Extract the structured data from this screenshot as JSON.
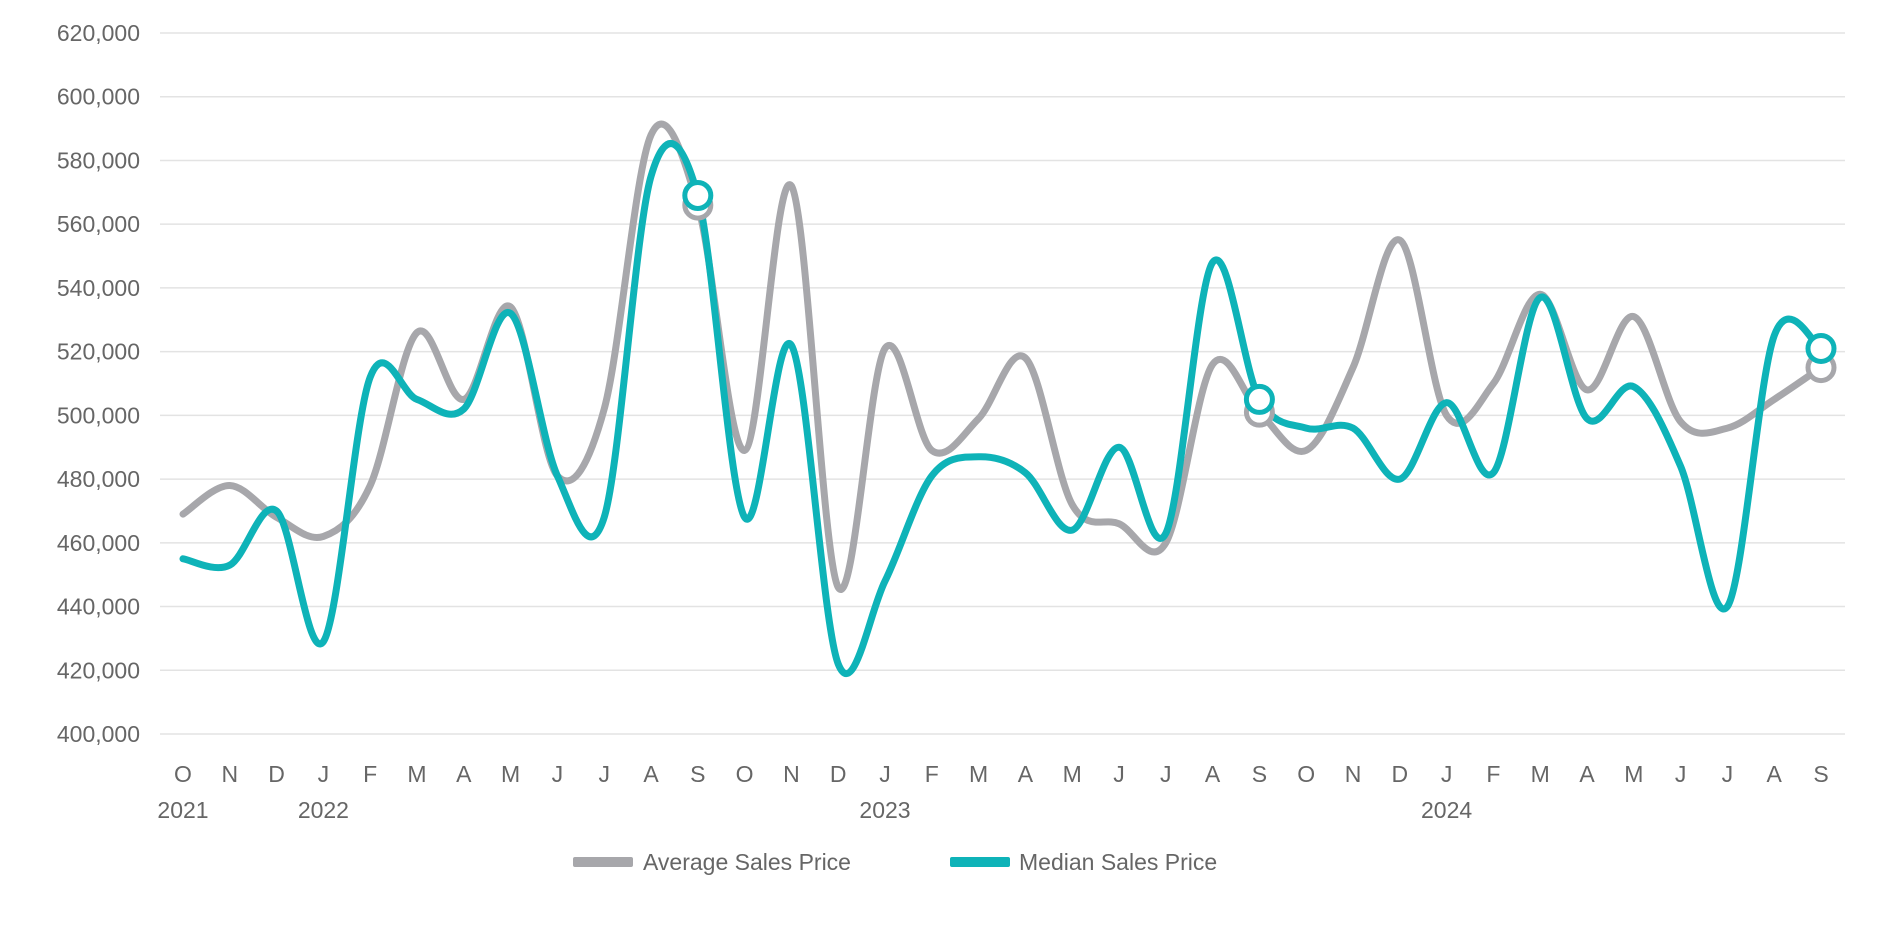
{
  "chart_data": {
    "type": "line",
    "title": "",
    "xlabel": "",
    "ylabel": "",
    "x": [
      "O",
      "N",
      "D",
      "J",
      "F",
      "M",
      "A",
      "M",
      "J",
      "J",
      "A",
      "S",
      "O",
      "N",
      "D",
      "J",
      "F",
      "M",
      "A",
      "M",
      "J",
      "J",
      "A",
      "S",
      "O",
      "N",
      "D",
      "J",
      "F",
      "M",
      "A",
      "M",
      "J",
      "J",
      "A",
      "S"
    ],
    "year_labels": [
      {
        "index": 0,
        "label": "2021"
      },
      {
        "index": 3,
        "label": "2022"
      },
      {
        "index": 15,
        "label": "2023"
      },
      {
        "index": 27,
        "label": "2024"
      }
    ],
    "yticks": [
      "400,000",
      "420,000",
      "440,000",
      "460,000",
      "480,000",
      "500,000",
      "520,000",
      "540,000",
      "560,000",
      "580,000",
      "600,000",
      "620,000"
    ],
    "ylim": [
      400000,
      620000
    ],
    "grid": true,
    "legend_position": "bottom",
    "series": [
      {
        "name": "Average Sales Price",
        "color": "#a7a7ab",
        "values": [
          469000,
          478000,
          468000,
          462000,
          478000,
          526000,
          505000,
          534000,
          481000,
          502000,
          588000,
          566000,
          489000,
          572000,
          446000,
          521000,
          489000,
          499000,
          518000,
          472000,
          466000,
          460000,
          516000,
          501000,
          489000,
          515000,
          555000,
          500000,
          510000,
          538000,
          508000,
          531000,
          498000,
          496000,
          505000,
          515000
        ],
        "highlighted_points": [
          11,
          23,
          35
        ]
      },
      {
        "name": "Median Sales Price",
        "color": "#0eb3b8",
        "values": [
          455000,
          453000,
          470000,
          429000,
          512000,
          505000,
          502000,
          532000,
          481000,
          468000,
          575000,
          569000,
          468000,
          522000,
          422000,
          448000,
          481000,
          487000,
          482000,
          464000,
          490000,
          463000,
          548000,
          505000,
          496000,
          496000,
          480000,
          504000,
          482000,
          537000,
          499000,
          509000,
          484000,
          440000,
          525000,
          521000
        ],
        "highlighted_points": [
          11,
          23,
          35
        ]
      }
    ]
  }
}
